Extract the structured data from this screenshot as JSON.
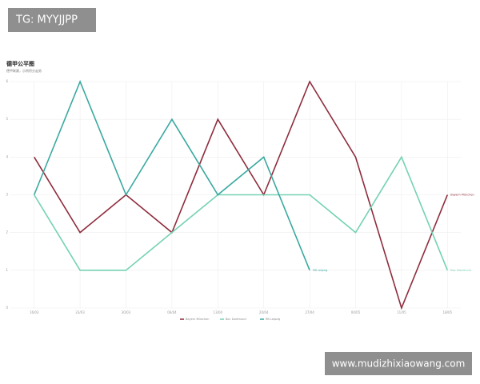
{
  "chart_data": {
    "type": "line",
    "title": "德甲公平图",
    "subtitle": "德甲联赛，示例积分走势",
    "categories": [
      "16/03",
      "23/03",
      "30/03",
      "06/04",
      "13/04",
      "20/04",
      "27/04",
      "04/05",
      "11/05",
      "18/05"
    ],
    "series": [
      {
        "name": "Bayern München",
        "color": "#8e2c3c",
        "values": [
          4,
          2,
          3,
          2,
          5,
          3,
          6,
          4,
          0,
          3
        ]
      },
      {
        "name": "Bor. Dortmund",
        "color": "#74d1b4",
        "values": [
          3,
          1,
          1,
          2,
          3,
          3,
          3,
          2,
          4,
          1
        ]
      },
      {
        "name": "RB Leipzig",
        "color": "#3aa9a0",
        "values": [
          3,
          6,
          3,
          5,
          3,
          4,
          1,
          null,
          null,
          null
        ]
      }
    ],
    "ylim": [
      0,
      6
    ],
    "yticks": [
      0,
      1,
      2,
      3,
      4,
      5,
      6
    ],
    "grid": true,
    "legend": "bottom"
  },
  "watermarks": {
    "top_left": "TG: MYYJJPP",
    "bottom_right": "www.mudizhixiaowang.com"
  }
}
